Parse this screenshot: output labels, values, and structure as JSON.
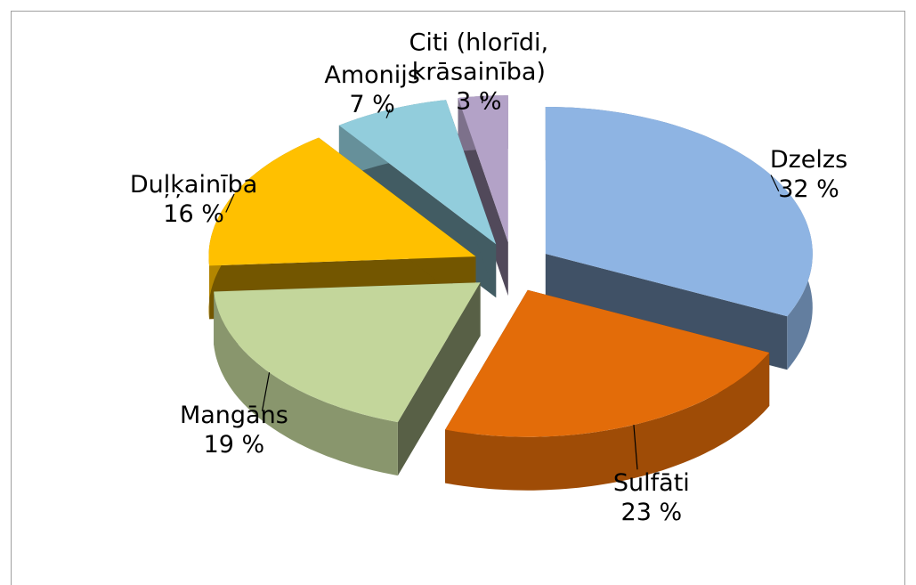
{
  "chart_data": {
    "type": "pie",
    "categories": [
      "Dzelzs",
      "Sulfāti",
      "Mangāns",
      "Duļķainība",
      "Amonijs",
      "Citi (hlorīdi, krāsainība)"
    ],
    "values": [
      32,
      23,
      19,
      16,
      7,
      3
    ],
    "value_labels": [
      "32 %",
      "23 %",
      "19 %",
      "16 %",
      "7 %",
      "3 %"
    ],
    "colors": [
      "#8eb4e3",
      "#e36c09",
      "#c3d69b",
      "#ffc000",
      "#92cddc",
      "#b3a2c7"
    ]
  }
}
